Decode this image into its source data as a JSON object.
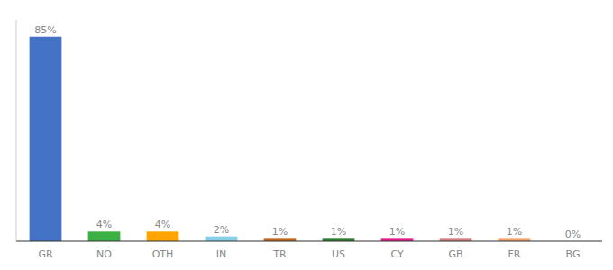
{
  "chart_data": {
    "type": "bar",
    "categories": [
      "GR",
      "NO",
      "OTH",
      "IN",
      "TR",
      "US",
      "CY",
      "GB",
      "FR",
      "BG"
    ],
    "values": [
      85,
      4,
      4,
      2,
      1,
      1,
      1,
      1,
      1,
      0
    ],
    "value_labels": [
      "85%",
      "4%",
      "4%",
      "2%",
      "1%",
      "1%",
      "1%",
      "1%",
      "1%",
      "0%"
    ],
    "colors": [
      "#4472C4",
      "#3CB043",
      "#FFA500",
      "#87CEEB",
      "#C46A1E",
      "#2E7D32",
      "#E91E8C",
      "#D48080",
      "#F4A46A",
      "#D48080"
    ],
    "ylim": [
      0,
      92
    ],
    "data_labels": true,
    "tick_labels": "x"
  }
}
